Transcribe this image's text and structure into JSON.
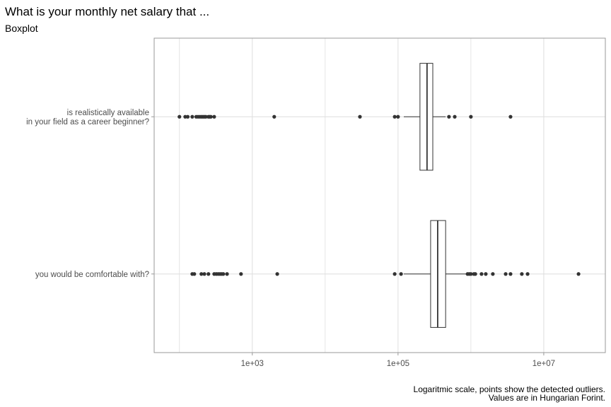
{
  "chart_data": {
    "type": "boxplot",
    "orientation": "horizontal",
    "title": "What is your monthly net salary that ...",
    "subtitle": "Boxplot",
    "caption": [
      "Logaritmic scale, points show the detected outliers.",
      "Values are in Hungarian Forint."
    ],
    "x_scale": "log10",
    "x_range": [
      45,
      70000000
    ],
    "x_ticks": [
      {
        "value": 1000,
        "label": "1e+03"
      },
      {
        "value": 100000,
        "label": "1e+05"
      },
      {
        "value": 10000000,
        "label": "1e+07"
      }
    ],
    "grid": true,
    "categories": [
      {
        "label_lines": [
          "is realistically available",
          "in your field as a career beginner?"
        ],
        "whisker_low": 120000,
        "q1": 200000,
        "median": 250000,
        "q3": 300000,
        "whisker_high": 450000,
        "outliers": [
          100,
          120,
          130,
          150,
          170,
          180,
          190,
          200,
          210,
          220,
          230,
          250,
          260,
          270,
          300,
          2000,
          30000,
          90000,
          100000,
          500000,
          600000,
          1000000,
          3500000
        ]
      },
      {
        "label_lines": [
          "you would be comfortable with?"
        ],
        "whisker_low": 120000,
        "q1": 280000,
        "median": 350000,
        "q3": 450000,
        "whisker_high": 900000,
        "outliers": [
          150,
          160,
          200,
          220,
          250,
          300,
          320,
          340,
          360,
          380,
          400,
          450,
          700,
          2200,
          90000,
          110000,
          900000,
          950000,
          1000000,
          1100000,
          1150000,
          1400000,
          1600000,
          2000000,
          3000000,
          3500000,
          5000000,
          6000000,
          30000000
        ]
      }
    ]
  }
}
